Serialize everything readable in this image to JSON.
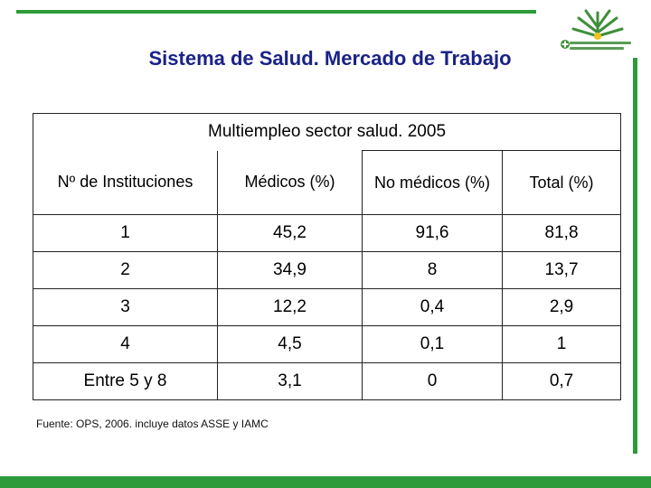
{
  "title": "Sistema de Salud. Mercado de Trabajo",
  "table": {
    "caption": "Multiempleo sector salud. 2005",
    "headers": [
      "Nº de Instituciones",
      "Médicos  (%)",
      "No médicos (%)",
      "Total  (%)"
    ],
    "rows": [
      [
        "1",
        "45,2",
        "91,6",
        "81,8"
      ],
      [
        "2",
        "34,9",
        "8",
        "13,7"
      ],
      [
        "3",
        "12,2",
        "0,4",
        "2,9"
      ],
      [
        "4",
        "4,5",
        "0,1",
        "1"
      ],
      [
        "Entre 5 y 8",
        "3,1",
        "0",
        "0,7"
      ]
    ]
  },
  "source": "Fuente: OPS, 2006. incluye datos ASSE y IAMC",
  "colors": {
    "accent": "#2e9b3a",
    "title": "#1a2287"
  },
  "logo": {
    "icon": "ministry-tree-logo"
  }
}
